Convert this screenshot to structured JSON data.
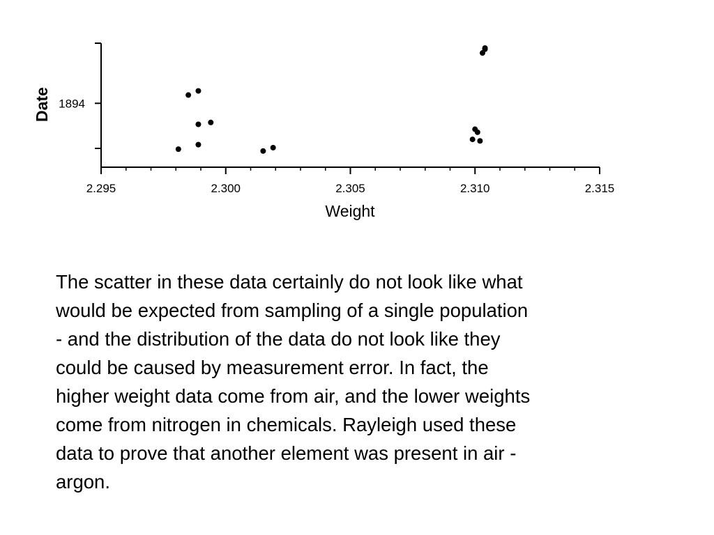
{
  "chart_data": {
    "type": "scatter",
    "title": "",
    "xlabel": "Weight",
    "ylabel": "Date",
    "xlim": [
      2.295,
      2.315
    ],
    "xticks": [
      {
        "value": 2.295,
        "label": "2.295"
      },
      {
        "value": 2.3,
        "label": "2.300"
      },
      {
        "value": 2.305,
        "label": "2.305"
      },
      {
        "value": 2.31,
        "label": "2.310"
      },
      {
        "value": 2.315,
        "label": "2.315"
      }
    ],
    "xminor_step": 0.001,
    "ylim": [
      1892.3,
      1895.6
    ],
    "yticks": [
      {
        "value": 1892.8,
        "label": ""
      },
      {
        "value": 1894.0,
        "label": "1894"
      },
      {
        "value": 1895.6,
        "label": ""
      }
    ],
    "grid": false,
    "marker_color": "#000000",
    "points": [
      {
        "x": 2.2981,
        "y": 1892.78
      },
      {
        "x": 2.2989,
        "y": 1892.9
      },
      {
        "x": 2.2989,
        "y": 1893.44
      },
      {
        "x": 2.2994,
        "y": 1893.49
      },
      {
        "x": 2.2985,
        "y": 1894.22
      },
      {
        "x": 2.2989,
        "y": 1894.33
      },
      {
        "x": 2.3015,
        "y": 1892.73
      },
      {
        "x": 2.3019,
        "y": 1892.82
      },
      {
        "x": 2.3099,
        "y": 1893.04
      },
      {
        "x": 2.3102,
        "y": 1893.0
      },
      {
        "x": 2.31,
        "y": 1893.31
      },
      {
        "x": 2.3101,
        "y": 1893.23
      },
      {
        "x": 2.3103,
        "y": 1895.34
      },
      {
        "x": 2.3104,
        "y": 1895.44
      },
      {
        "x": 2.3104,
        "y": 1895.47
      }
    ]
  },
  "body_text": "The scatter in these data certainly do not look like what\nwould be expected from sampling of a single population\n- and the distribution of the data do not look like they\ncould be caused by measurement error. In fact, the\nhigher weight data come from air, and the lower weights\ncome from nitrogen in chemicals.  Rayleigh used these\ndata to prove that another element was present in air -\nargon."
}
